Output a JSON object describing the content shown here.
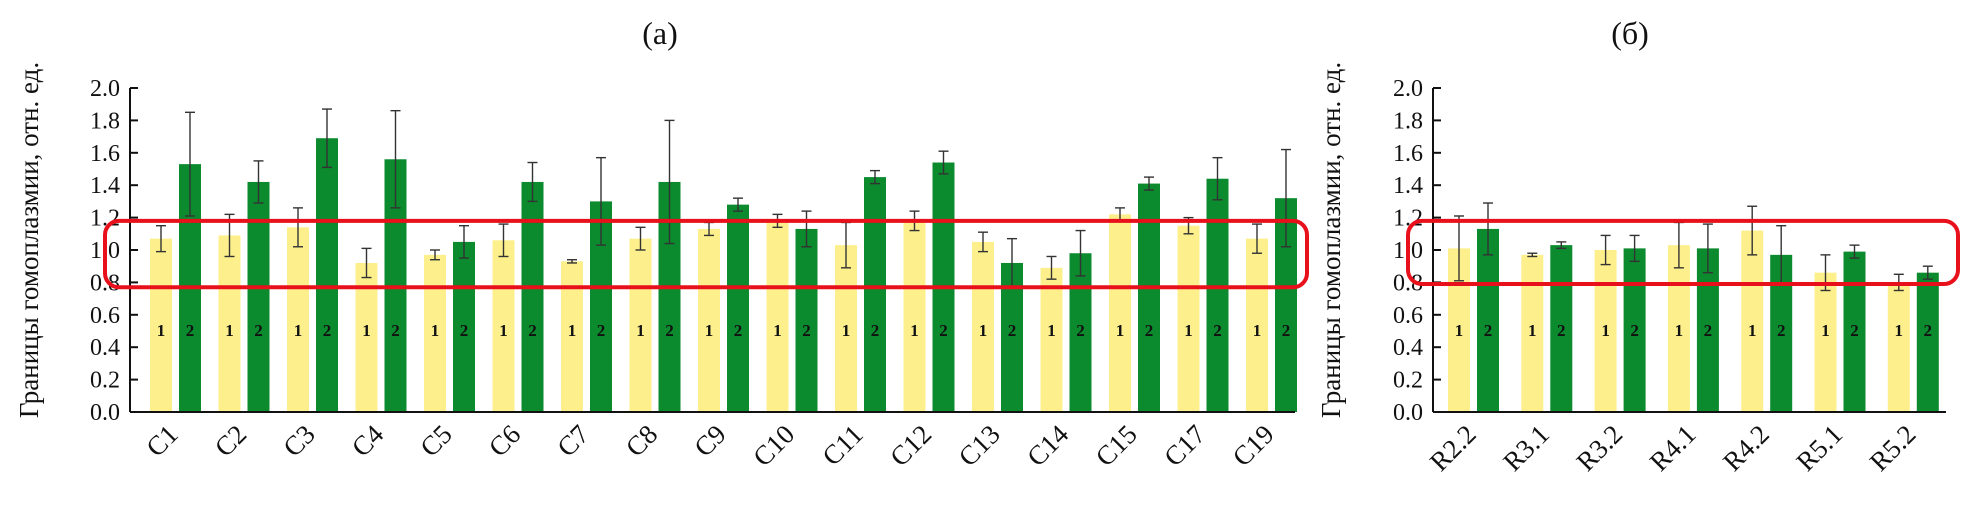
{
  "chart_data": [
    {
      "type": "bar",
      "title": "(а)",
      "ylabel": "Границы гомоплазмии, отн. ед.",
      "xlabel": "",
      "ylim": [
        0,
        2.0
      ],
      "yticks": [
        "0.0",
        "0.2",
        "0.4",
        "0.6",
        "0.8",
        "1.0",
        "1.2",
        "1.4",
        "1.6",
        "1.8",
        "2.0"
      ],
      "categories": [
        "C1",
        "C2",
        "C3",
        "C4",
        "C5",
        "C6",
        "C7",
        "C8",
        "C9",
        "C10",
        "C11",
        "C12",
        "C13",
        "C14",
        "C15",
        "C17",
        "C19"
      ],
      "bar_labels": [
        "1",
        "2"
      ],
      "series": [
        {
          "values": [
            1.07,
            1.09,
            1.14,
            0.92,
            0.97,
            1.06,
            0.93,
            1.07,
            1.13,
            1.18,
            1.03,
            1.18,
            1.05,
            0.89,
            1.22,
            1.15,
            1.07
          ],
          "errors": [
            0.08,
            0.13,
            0.12,
            0.09,
            0.03,
            0.1,
            0.01,
            0.07,
            0.04,
            0.04,
            0.14,
            0.06,
            0.06,
            0.07,
            0.04,
            0.05,
            0.09
          ]
        },
        {
          "values": [
            1.53,
            1.42,
            1.69,
            1.56,
            1.05,
            1.42,
            1.3,
            1.42,
            1.28,
            1.13,
            1.45,
            1.54,
            0.92,
            0.98,
            1.41,
            1.44,
            1.32
          ],
          "errors": [
            0.32,
            0.13,
            0.18,
            0.3,
            0.1,
            0.12,
            0.27,
            0.38,
            0.04,
            0.11,
            0.04,
            0.07,
            0.15,
            0.14,
            0.04,
            0.13,
            0.3
          ]
        }
      ],
      "colors": {
        "series1": "#fdf08c",
        "series2": "#0b8a2e",
        "highlight": "#e8101a"
      },
      "highlight_range": [
        0.77,
        1.18
      ]
    },
    {
      "type": "bar",
      "title": "(б)",
      "ylabel": "Границы гомоплазмии, отн. ед.",
      "xlabel": "",
      "ylim": [
        0,
        2.0
      ],
      "yticks": [
        "0.0",
        "0.2",
        "0.4",
        "0.6",
        "0.8",
        "1.0",
        "1.2",
        "1.4",
        "1.6",
        "1.8",
        "2.0"
      ],
      "categories": [
        "R2.2",
        "R3.1",
        "R3.2",
        "R4.1",
        "R4.2",
        "R5.1",
        "R5.2"
      ],
      "bar_labels": [
        "1",
        "2"
      ],
      "series": [
        {
          "values": [
            1.01,
            0.97,
            1.0,
            1.03,
            1.12,
            0.86,
            0.8
          ],
          "errors": [
            0.2,
            0.01,
            0.09,
            0.14,
            0.15,
            0.11,
            0.05
          ]
        },
        {
          "values": [
            1.13,
            1.03,
            1.01,
            1.01,
            0.97,
            0.99,
            0.86
          ],
          "errors": [
            0.16,
            0.02,
            0.08,
            0.15,
            0.18,
            0.04,
            0.04
          ]
        }
      ],
      "colors": {
        "series1": "#fdf08c",
        "series2": "#0b8a2e",
        "highlight": "#e8101a"
      },
      "highlight_range": [
        0.79,
        1.18
      ]
    }
  ]
}
